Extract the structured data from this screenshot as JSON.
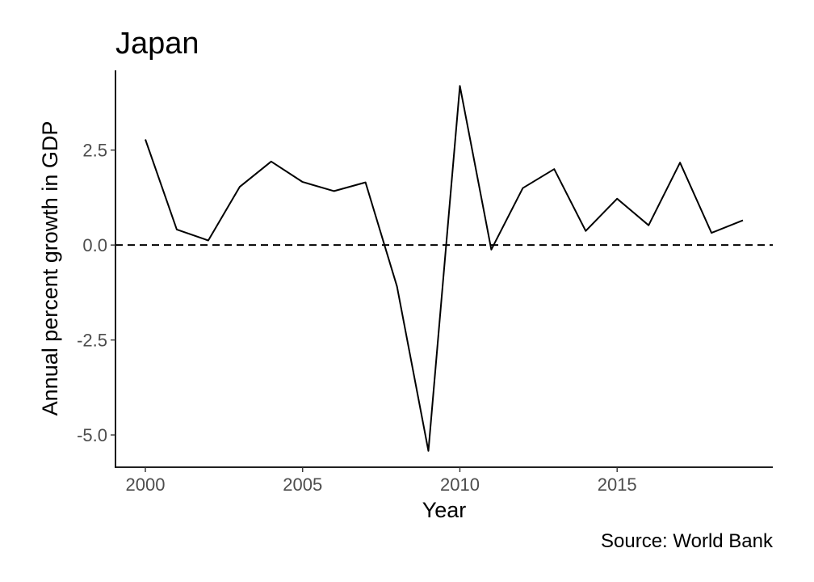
{
  "chart_data": {
    "type": "line",
    "title": "Japan",
    "xlabel": "Year",
    "ylabel": "Annual percent growth in GDP",
    "caption": "Source: World Bank",
    "x": [
      2000,
      2001,
      2002,
      2003,
      2004,
      2005,
      2006,
      2007,
      2008,
      2009,
      2010,
      2011,
      2012,
      2013,
      2014,
      2015,
      2016,
      2017,
      2018,
      2019
    ],
    "series": [
      {
        "values": [
          2.78,
          0.41,
          0.12,
          1.53,
          2.2,
          1.66,
          1.42,
          1.65,
          -1.09,
          -5.42,
          4.19,
          -0.12,
          1.5,
          2.0,
          0.37,
          1.22,
          0.52,
          2.17,
          0.32,
          0.65
        ],
        "color": "#000000"
      }
    ],
    "reference_lines": [
      {
        "axis": "y",
        "value": 0,
        "style": "dashed",
        "color": "#000000"
      }
    ],
    "xlim": [
      1999.05,
      2019.95
    ],
    "ylim": [
      -5.85,
      4.6
    ],
    "xticks": [
      "2000",
      "2005",
      "2010",
      "2015"
    ],
    "yticks": [
      "2.5",
      "0.0",
      "-2.5",
      "-5.0"
    ],
    "grid": false,
    "legend": "none"
  }
}
